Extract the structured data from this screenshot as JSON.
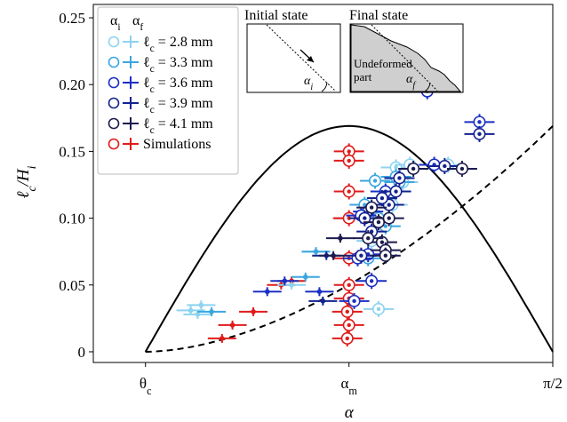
{
  "chart_data": {
    "type": "scatter",
    "xlabel": "α",
    "ylabel": "ℓc/Hi",
    "xlim": [
      0.25,
      1.5708
    ],
    "ylim": [
      -0.008,
      0.26
    ],
    "x_ticks": [
      {
        "value": 0.4,
        "label": "θ",
        "sub": "c"
      },
      {
        "value": 0.985,
        "label": "α",
        "sub": "m"
      },
      {
        "value": 1.5708,
        "label": "π/2",
        "sub": ""
      }
    ],
    "y_ticks": [
      {
        "value": 0,
        "label": "0"
      },
      {
        "value": 0.05,
        "label": "0.05"
      },
      {
        "value": 0.1,
        "label": "0.10"
      },
      {
        "value": 0.15,
        "label": "0.15"
      },
      {
        "value": 0.2,
        "label": "0.20"
      },
      {
        "value": 0.25,
        "label": "0.25"
      }
    ],
    "legend": {
      "header_left": "α",
      "header_left_sub": "i",
      "header_right": "α",
      "header_right_sub": "f",
      "position": "top-left",
      "entries": [
        {
          "label": "ℓ",
          "sub": "c",
          "value": " = 2.8 mm",
          "color": "#8cd3ef"
        },
        {
          "label": "ℓ",
          "sub": "c",
          "value": " = 3.3 mm",
          "color": "#3aa6df"
        },
        {
          "label": "ℓ",
          "sub": "c",
          "value": " = 3.6 mm",
          "color": "#1a2fc4"
        },
        {
          "label": "ℓ",
          "sub": "c",
          "value": " = 3.9 mm",
          "color": "#13228f"
        },
        {
          "label": "ℓ",
          "sub": "c",
          "value": " = 4.1 mm",
          "color": "#1b1b4f"
        },
        {
          "label": "Simulations",
          "sub": "",
          "value": "",
          "color": "#e01b1b"
        }
      ]
    },
    "curves": [
      {
        "style": "solid",
        "kind": "max_curve",
        "peak_x": 0.985,
        "peak_y": 0.169
      },
      {
        "style": "dashed",
        "kind": "lower_curve",
        "end_y": 0.169
      }
    ],
    "series": [
      {
        "name": "Simulations",
        "color": "#e01b1b",
        "initial": [
          [
            0.62,
            0.01
          ],
          [
            0.65,
            0.02
          ],
          [
            0.71,
            0.03
          ],
          [
            0.79,
            0.05
          ],
          [
            0.82,
            0.053
          ],
          [
            0.98,
            0.1
          ]
        ],
        "final": [
          [
            0.985,
            0.15
          ],
          [
            0.985,
            0.143
          ],
          [
            0.985,
            0.12
          ],
          [
            0.985,
            0.1
          ],
          [
            0.985,
            0.07
          ],
          [
            0.985,
            0.05
          ],
          [
            0.98,
            0.03
          ],
          [
            0.985,
            0.02
          ],
          [
            0.98,
            0.01
          ],
          [
            0.985,
            0.04
          ]
        ]
      },
      {
        "name": "ℓc = 2.8 mm",
        "color": "#8cd3ef",
        "initial": [
          [
            0.53,
            0.031
          ],
          [
            0.55,
            0.028
          ],
          [
            0.56,
            0.035
          ],
          [
            0.82,
            0.05
          ],
          [
            0.89,
            0.075
          ]
        ],
        "final": [
          [
            1.07,
            0.032
          ],
          [
            1.05,
            0.083
          ],
          [
            1.11,
            0.11
          ],
          [
            1.12,
            0.138
          ],
          [
            1.14,
            0.127
          ],
          [
            1.27,
            0.14
          ],
          [
            1.16,
            0.14
          ]
        ]
      },
      {
        "name": "ℓc = 3.3 mm",
        "color": "#3aa6df",
        "initial": [
          [
            0.59,
            0.03
          ],
          [
            0.86,
            0.056
          ],
          [
            0.89,
            0.075
          ]
        ],
        "final": [
          [
            1.04,
            0.07
          ],
          [
            1.07,
            0.1
          ],
          [
            1.06,
            0.128
          ],
          [
            1.12,
            0.131
          ],
          [
            1.09,
            0.094
          ],
          [
            1.03,
            0.11
          ],
          [
            1.13,
            0.127
          ]
        ]
      },
      {
        "name": "ℓc = 3.6 mm",
        "color": "#1a2fc4",
        "initial": [
          [
            0.75,
            0.045
          ],
          [
            0.8,
            0.053
          ],
          [
            0.9,
            0.045
          ]
        ],
        "final": [
          [
            1.05,
            0.053
          ],
          [
            1.04,
            0.073
          ],
          [
            1.01,
            0.07
          ],
          [
            1.04,
            0.105
          ],
          [
            1.09,
            0.12
          ],
          [
            1.21,
            0.195
          ],
          [
            1.23,
            0.14
          ],
          [
            1.36,
            0.172
          ],
          [
            1.02,
            0.102
          ],
          [
            1.0,
            0.038
          ]
        ]
      },
      {
        "name": "ℓc = 3.9 mm",
        "color": "#13228f",
        "initial": [
          [
            0.91,
            0.038
          ],
          [
            0.92,
            0.072
          ]
        ],
        "final": [
          [
            1.02,
            0.072
          ],
          [
            1.03,
            0.1
          ],
          [
            1.1,
            0.11
          ],
          [
            1.13,
            0.13
          ],
          [
            1.12,
            0.12
          ],
          [
            1.08,
            0.115
          ],
          [
            1.26,
            0.139
          ],
          [
            1.36,
            0.163
          ],
          [
            1.05,
            0.09
          ]
        ]
      },
      {
        "name": "ℓc = 4.1 mm",
        "color": "#1b1b4f",
        "initial": [
          [
            0.94,
            0.072
          ],
          [
            0.96,
            0.085
          ]
        ],
        "final": [
          [
            1.05,
            0.108
          ],
          [
            1.07,
            0.097
          ],
          [
            1.08,
            0.082
          ],
          [
            1.09,
            0.076
          ],
          [
            1.1,
            0.1
          ],
          [
            1.17,
            0.137
          ],
          [
            1.31,
            0.137
          ],
          [
            1.09,
            0.072
          ],
          [
            1.04,
            0.085
          ]
        ]
      }
    ],
    "insets": {
      "initial_title": "Initial state",
      "final_title": "Final state",
      "angle_initial": "α",
      "angle_initial_sub": "i",
      "angle_final": "α",
      "angle_final_sub": "f",
      "undeformed_line1": "Undeformed",
      "undeformed_line2": "part"
    }
  }
}
